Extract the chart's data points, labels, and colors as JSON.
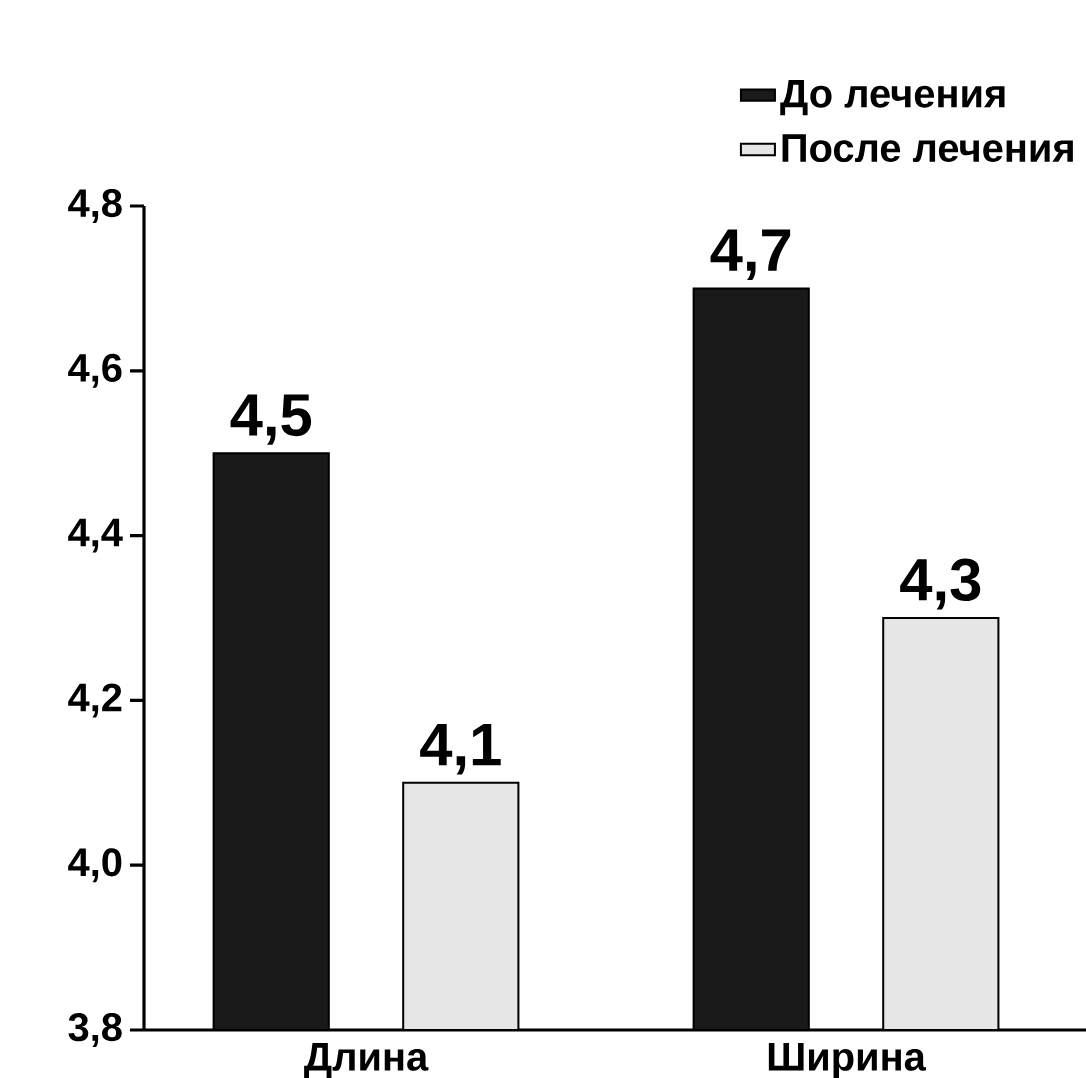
{
  "chart_data": {
    "type": "bar",
    "categories": [
      "Длина",
      "Ширина"
    ],
    "series": [
      {
        "name": "До лечения",
        "color": "#1a1a1a",
        "values": [
          4.5,
          4.7
        ],
        "value_labels": [
          "4,5",
          "4,7"
        ]
      },
      {
        "name": "После лечения",
        "color": "#e6e6e6",
        "values": [
          4.1,
          4.3
        ],
        "value_labels": [
          "4,1",
          "4,3"
        ]
      }
    ],
    "ylim": [
      3.8,
      4.8
    ],
    "yticks": [
      {
        "value": 3.8,
        "label": "3,8"
      },
      {
        "value": 4.0,
        "label": "4,0"
      },
      {
        "value": 4.2,
        "label": "4,2"
      },
      {
        "value": 4.4,
        "label": "4,4"
      },
      {
        "value": 4.6,
        "label": "4,6"
      },
      {
        "value": 4.8,
        "label": "4,8"
      }
    ],
    "legend": "top right",
    "grid": false
  }
}
